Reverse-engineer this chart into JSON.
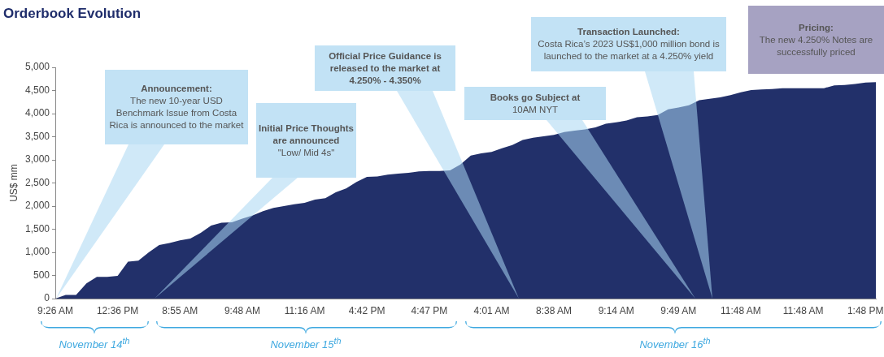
{
  "chart_data": {
    "type": "area",
    "title": "Orderbook Evolution",
    "ylabel": "US$ mm",
    "categories": [
      "9:26 AM",
      null,
      null,
      null,
      null,
      null,
      "12:36 PM",
      null,
      null,
      null,
      null,
      null,
      "8:55 AM",
      null,
      null,
      null,
      null,
      null,
      "9:48 AM",
      null,
      null,
      null,
      null,
      null,
      "11:16 AM",
      null,
      null,
      null,
      null,
      null,
      "4:42 PM",
      null,
      null,
      null,
      null,
      null,
      "4:47 PM",
      null,
      null,
      null,
      null,
      null,
      "4:01 AM",
      null,
      null,
      null,
      null,
      null,
      "8:38 AM",
      null,
      null,
      null,
      null,
      null,
      "9:14 AM",
      null,
      null,
      null,
      null,
      null,
      "9:49 AM",
      null,
      null,
      null,
      null,
      null,
      "11:48 AM",
      null,
      null,
      null,
      null,
      null,
      "11:48 AM",
      null,
      null,
      null,
      null,
      null,
      "1:48 PM",
      null
    ],
    "series": [
      {
        "color": "#22306a",
        "values": [
          0,
          80,
          80,
          330,
          470,
          470,
          490,
          800,
          820,
          1000,
          1160,
          1200,
          1260,
          1300,
          1420,
          1580,
          1640,
          1650,
          1730,
          1800,
          1890,
          1960,
          2000,
          2040,
          2070,
          2140,
          2170,
          2300,
          2380,
          2520,
          2630,
          2640,
          2680,
          2700,
          2720,
          2750,
          2760,
          2760,
          2770,
          2900,
          3090,
          3140,
          3170,
          3250,
          3320,
          3430,
          3480,
          3510,
          3540,
          3600,
          3630,
          3660,
          3700,
          3780,
          3810,
          3850,
          3920,
          3940,
          3970,
          4090,
          4130,
          4180,
          4290,
          4320,
          4350,
          4400,
          4460,
          4510,
          4520,
          4530,
          4550,
          4550,
          4550,
          4550,
          4550,
          4610,
          4620,
          4640,
          4670,
          4680
        ]
      }
    ],
    "ylim": [
      0,
      5000
    ],
    "yticks": [
      {
        "value": 0,
        "label": "0"
      },
      {
        "value": 500,
        "label": "500"
      },
      {
        "value": 1000,
        "label": "1,000"
      },
      {
        "value": 1500,
        "label": "1,500"
      },
      {
        "value": 2000,
        "label": "2,000"
      },
      {
        "value": 2500,
        "label": "2,500"
      },
      {
        "value": 3000,
        "label": "3,000"
      },
      {
        "value": 3500,
        "label": "3,500"
      },
      {
        "value": 4000,
        "label": "4,000"
      },
      {
        "value": 4500,
        "label": "4,500"
      },
      {
        "value": 5000,
        "label": "5,000"
      }
    ],
    "annotations": [
      "Announcement:\nThe new 10-year USD Benchmark Issue from Costa Rica is announced to the market",
      "Initial Price Thoughts are announced\n\"Low/ Mid 4s\"",
      "Official Price Guidance is released to the market at 4.250% - 4.350%",
      "Books go Subject at\n10AM NYT",
      "Transaction Launched:\nCosta Rica’s 2023 US$1,000 million bond is launched to the market at a 4.250% yield",
      "Pricing:\nThe new 4.250% Notes are successfully priced",
      "November 14$^{th}$",
      "November 15$^{th}$",
      "November 16$^{th}$"
    ]
  }
}
